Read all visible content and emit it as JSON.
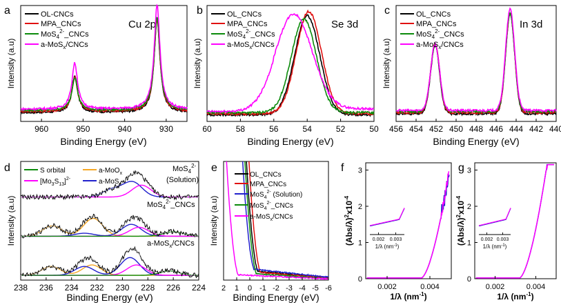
{
  "chart_data": [
    {
      "panel": "a",
      "type": "line",
      "title": "Cu 2p",
      "xlabel": "Binding Energy (eV)",
      "ylabel": "Intensity (a.u)",
      "xlim": [
        965,
        925
      ],
      "x_ticks": [
        960,
        950,
        940,
        930
      ],
      "series": [
        {
          "name": "OL-CNCs",
          "color": "#000000",
          "peaks": [
            [
              952.0,
              0.33
            ],
            [
              932.2,
              0.86
            ]
          ]
        },
        {
          "name": "MPA_CNCs",
          "color": "#e01010",
          "peaks": [
            [
              952.0,
              0.31
            ],
            [
              932.2,
              0.84
            ]
          ]
        },
        {
          "name": "MoS4 2-_CNCs",
          "color": "#0a8a0a",
          "peaks": [
            [
              952.0,
              0.3
            ],
            [
              932.2,
              0.85
            ]
          ]
        },
        {
          "name": "a-MoSx/CNCs",
          "color": "#ff00ff",
          "peaks": [
            [
              952.0,
              0.42
            ],
            [
              932.2,
              0.95
            ]
          ]
        }
      ]
    },
    {
      "panel": "b",
      "type": "line",
      "title": "Se 3d",
      "xlabel": "Binding Energy (eV)",
      "ylabel": "Intensity (a.u)",
      "xlim": [
        60,
        50
      ],
      "x_ticks": [
        60,
        58,
        56,
        54,
        52,
        50
      ],
      "series": [
        {
          "name": "OL_CNCs",
          "color": "#000000",
          "peaks": [
            [
              54.0,
              0.9
            ]
          ]
        },
        {
          "name": "MPA_CNCs",
          "color": "#e01010",
          "peaks": [
            [
              53.9,
              0.93
            ]
          ]
        },
        {
          "name": "MoS4 2-_CNCs",
          "color": "#0a8a0a",
          "peaks": [
            [
              54.2,
              0.85
            ]
          ]
        },
        {
          "name": "a-MoSx/CNCs",
          "color": "#ff00ff",
          "peaks": [
            [
              54.8,
              0.86
            ]
          ]
        }
      ]
    },
    {
      "panel": "c",
      "type": "line",
      "title": "In 3d",
      "xlabel": "Binding Energy (eV)",
      "ylabel": "Intensity (a.u)",
      "xlim": [
        456,
        440
      ],
      "x_ticks": [
        456,
        454,
        452,
        450,
        448,
        446,
        444,
        442,
        440
      ],
      "series": [
        {
          "name": "OL_CNCs",
          "color": "#000000",
          "peaks": [
            [
              452.1,
              0.62
            ],
            [
              444.6,
              0.91
            ]
          ]
        },
        {
          "name": "MPA_CNCs",
          "color": "#e01010",
          "peaks": [
            [
              452.1,
              0.63
            ],
            [
              444.6,
              0.9
            ]
          ]
        },
        {
          "name": "MoS4 2-_CNCs",
          "color": "#0a8a0a",
          "peaks": [
            [
              452.1,
              0.61
            ],
            [
              444.6,
              0.89
            ]
          ]
        },
        {
          "name": "a-MoSx/CNCs",
          "color": "#ff00ff",
          "peaks": [
            [
              452.1,
              0.6
            ],
            [
              444.6,
              0.92
            ]
          ]
        }
      ]
    },
    {
      "panel": "d",
      "type": "line",
      "xlabel": "Binding Energy (eV)",
      "ylabel": "Intensity (a.u)",
      "xlim": [
        238,
        224
      ],
      "x_ticks": [
        238,
        236,
        234,
        232,
        230,
        228,
        226,
        224
      ],
      "legend": [
        {
          "name": "S orbital",
          "color": "#0a8a0a"
        },
        {
          "name": "a-MoOx",
          "color": "#f5a623"
        },
        {
          "name": "[Mo3S13]2-",
          "color": "#ff00ff"
        },
        {
          "name": "a-MoSx",
          "color": "#2020cc"
        }
      ],
      "spectra": [
        {
          "label": "MoS4 2- (Solution)",
          "components": {
            "a-MoOx": [],
            "a-MoSx": [
              [
                230.8,
                0.25
              ],
              [
                229.2,
                0.5
              ]
            ],
            "[Mo3S13]2-": [
              [
                228.5,
                0.4
              ]
            ],
            "S orbital": []
          }
        },
        {
          "label": "MoS4 2-_CNCs",
          "components": {
            "a-MoOx": [
              [
                235.5,
                0.35
              ],
              [
                232.3,
                0.6
              ]
            ],
            "a-MoSx": [
              [
                229.3,
                0.4
              ],
              [
                233.0,
                0.1
              ]
            ],
            "[Mo3S13]2-": [
              [
                228.7,
                0.3
              ]
            ],
            "S orbital": [
              [
                226.0,
                0.15
              ]
            ]
          }
        },
        {
          "label": "a-MoSx/CNCs",
          "components": {
            "a-MoOx": [
              [
                235.6,
                0.3
              ],
              [
                232.4,
                0.35
              ]
            ],
            "a-MoSx": [
              [
                229.4,
                0.6
              ],
              [
                233.0,
                0.3
              ]
            ],
            "[Mo3S13]2-": [
              [
                228.9,
                0.35
              ]
            ],
            "S orbital": [
              [
                226.3,
                0.15
              ]
            ]
          }
        }
      ]
    },
    {
      "panel": "e",
      "type": "line",
      "xlabel": "Binding Energy (eV)",
      "ylabel": "Intensity (a.u)",
      "xlim": [
        2,
        -6
      ],
      "x_ticks": [
        2,
        1,
        0,
        -1,
        -2,
        -3,
        -4,
        -5,
        -6
      ],
      "series": [
        {
          "name": "OL_CNCs",
          "color": "#000000"
        },
        {
          "name": "MPA_CNCs",
          "color": "#e01010"
        },
        {
          "name": "MoS4 2- (Solution)",
          "color": "#2020cc"
        },
        {
          "name": "MoS4 2-_CNCs",
          "color": "#0a8a0a"
        },
        {
          "name": "a-MoSx/CNCs",
          "color": "#ff00ff"
        }
      ]
    },
    {
      "panel": "f",
      "type": "line",
      "xlabel": "1/λ (nm⁻¹)",
      "ylabel": "(Abs/λ)²x10⁻⁴",
      "xlim": [
        0.001,
        0.005
      ],
      "ylim": [
        0,
        3.2
      ],
      "x_ticks": [
        0.002,
        0.004
      ],
      "y_ticks": [
        0,
        1,
        2,
        3
      ],
      "inset_x_ticks": [
        0.002,
        0.003
      ],
      "series": [
        {
          "name": "blue",
          "color": "#2020cc"
        },
        {
          "name": "magenta",
          "color": "#ff00ff"
        }
      ]
    },
    {
      "panel": "g",
      "type": "line",
      "xlabel": "1/λ (nm⁻¹)",
      "ylabel": "(Abs/λ)²x10⁻⁴",
      "xlim": [
        0.001,
        0.005
      ],
      "ylim": [
        0,
        3.2
      ],
      "x_ticks": [
        0.002,
        0.004
      ],
      "y_ticks": [
        0,
        1,
        2,
        3
      ],
      "inset_x_ticks": [
        0.002,
        0.003
      ],
      "series": [
        {
          "name": "blue",
          "color": "#2020cc"
        },
        {
          "name": "magenta",
          "color": "#ff00ff"
        }
      ]
    }
  ],
  "labels": {
    "a": "a",
    "b": "b",
    "c": "c",
    "d": "d",
    "e": "e",
    "f": "f",
    "g": "g",
    "cu2p": "Cu 2p",
    "se3d": "Se 3d",
    "in3d": "In 3d",
    "binding_energy": "Binding Energy (eV)",
    "intensity": "Intensity (a.u)",
    "ol_dash": "OL-CNCs",
    "ol_under": "OL_CNCs",
    "mpa": "MPA_CNCs",
    "mos4_base": "MoS",
    "mos4_sub": "4",
    "mos4_sup": "2-",
    "mos4_cncs_tail": "_CNCs",
    "amosx_base": "a-MoS",
    "amosx_sub": "x",
    "amosx_tail": "/CNCs",
    "solution_tail": " (Solution)",
    "solution_line2": "(Solution)",
    "s_orbital": "S orbital",
    "amoo_base": "a-MoO",
    "amoo_sub": "x",
    "mo3_a": "[Mo",
    "mo3_b": "3",
    "mo3_c": "S",
    "mo3_d": "13",
    "mo3_e": "]",
    "mo3_f": "2-",
    "f_ylabel_a": "(Abs/λ)",
    "f_ylabel_b": "2",
    "f_ylabel_c": "x10",
    "f_ylabel_d": "-4",
    "inv_lambda_a": "1/λ (nm",
    "inv_lambda_b": "-1",
    "inv_lambda_c": ")"
  }
}
